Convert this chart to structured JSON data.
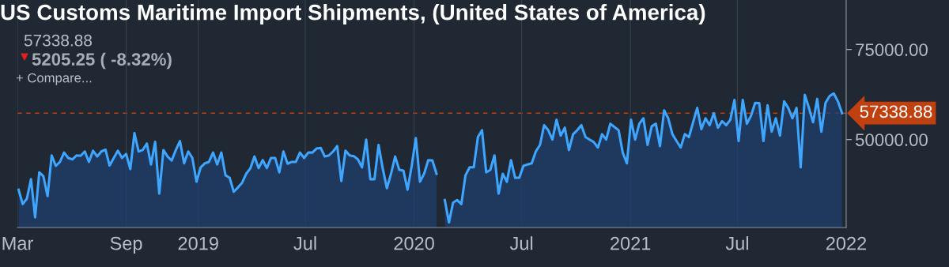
{
  "chart_data": {
    "type": "area",
    "title": "US Customs Maritime Import Shipments, (United States of America)",
    "annotations": [
      "57338.88",
      "5205.25 ( -8.32%)",
      "+ Compare..."
    ],
    "x": [
      "2018-03-03",
      "2018-03-10",
      "2018-03-17",
      "2018-03-24",
      "2018-03-31",
      "2018-04-07",
      "2018-04-14",
      "2018-04-21",
      "2018-04-28",
      "2018-05-05",
      "2018-05-12",
      "2018-05-19",
      "2018-05-26",
      "2018-06-02",
      "2018-06-09",
      "2018-06-16",
      "2018-06-23",
      "2018-06-30",
      "2018-07-07",
      "2018-07-14",
      "2018-07-21",
      "2018-07-28",
      "2018-08-04",
      "2018-08-11",
      "2018-08-18",
      "2018-08-25",
      "2018-09-01",
      "2018-09-08",
      "2018-09-15",
      "2018-09-22",
      "2018-09-29",
      "2018-10-06",
      "2018-10-13",
      "2018-10-20",
      "2018-10-27",
      "2018-11-03",
      "2018-11-10",
      "2018-11-17",
      "2018-11-24",
      "2018-12-01",
      "2018-12-08",
      "2018-12-15",
      "2018-12-22",
      "2018-12-29",
      "2019-01-05",
      "2019-01-12",
      "2019-01-19",
      "2019-01-26",
      "2019-02-02",
      "2019-02-09",
      "2019-02-16",
      "2019-02-23",
      "2019-03-02",
      "2019-03-09",
      "2019-03-16",
      "2019-03-23",
      "2019-03-30",
      "2019-04-06",
      "2019-04-13",
      "2019-04-20",
      "2019-04-27",
      "2019-05-04",
      "2019-05-11",
      "2019-05-18",
      "2019-05-25",
      "2019-06-01",
      "2019-06-08",
      "2019-06-15",
      "2019-06-22",
      "2019-06-29",
      "2019-07-06",
      "2019-07-13",
      "2019-07-20",
      "2019-07-27",
      "2019-08-03",
      "2019-08-10",
      "2019-08-17",
      "2019-08-24",
      "2019-08-31",
      "2019-09-07",
      "2019-09-14",
      "2019-09-21",
      "2019-09-28",
      "2019-10-05",
      "2019-10-12",
      "2019-10-19",
      "2019-10-26",
      "2019-11-02",
      "2019-11-09",
      "2019-11-16",
      "2019-11-23",
      "2019-11-30",
      "2019-12-07",
      "2019-12-14",
      "2019-12-21",
      "2019-12-28",
      "2020-01-04",
      "2020-01-11",
      "2020-01-18",
      "2020-01-25",
      "2020-02-01",
      "2020-02-08",
      "2020-02-15",
      "2020-02-22",
      "2020-02-29",
      "2020-03-07",
      "2020-03-14",
      "2020-03-21",
      "2020-03-28",
      "2020-04-04",
      "2020-04-11",
      "2020-04-18",
      "2020-04-25",
      "2020-05-02",
      "2020-05-09",
      "2020-05-16",
      "2020-05-23",
      "2020-05-30",
      "2020-06-06",
      "2020-06-13",
      "2020-06-20",
      "2020-06-27",
      "2020-07-04",
      "2020-07-11",
      "2020-07-18",
      "2020-07-25",
      "2020-08-01",
      "2020-08-08",
      "2020-08-15",
      "2020-08-22",
      "2020-08-29",
      "2020-09-05",
      "2020-09-12",
      "2020-09-19",
      "2020-09-26",
      "2020-10-03",
      "2020-10-10",
      "2020-10-17",
      "2020-10-24",
      "2020-10-31",
      "2020-11-07",
      "2020-11-14",
      "2020-11-21",
      "2020-11-28",
      "2020-12-05",
      "2020-12-12",
      "2020-12-19",
      "2020-12-26",
      "2021-01-02",
      "2021-01-09",
      "2021-01-16",
      "2021-01-23",
      "2021-01-30",
      "2021-02-06",
      "2021-02-13",
      "2021-02-20",
      "2021-02-27",
      "2021-03-06",
      "2021-03-13",
      "2021-03-20",
      "2021-03-27",
      "2021-04-03",
      "2021-04-10",
      "2021-04-17",
      "2021-04-24",
      "2021-05-01",
      "2021-05-08",
      "2021-05-15",
      "2021-05-22",
      "2021-05-29",
      "2021-06-05",
      "2021-06-12",
      "2021-06-19",
      "2021-06-26",
      "2021-07-03",
      "2021-07-10",
      "2021-07-17",
      "2021-07-24",
      "2021-07-31",
      "2021-08-07",
      "2021-08-14",
      "2021-08-21",
      "2021-08-28",
      "2021-09-04",
      "2021-09-11",
      "2021-09-18",
      "2021-09-25",
      "2021-10-02",
      "2021-10-09",
      "2021-10-16",
      "2021-10-23",
      "2021-10-30",
      "2021-11-06",
      "2021-11-13",
      "2021-11-20",
      "2021-11-27",
      "2021-12-04",
      "2021-12-11",
      "2021-12-18",
      "2021-12-25"
    ],
    "series": [
      {
        "color": "#3ea6ff",
        "values": [
          36100,
          32100,
          33600,
          39000,
          28400,
          40900,
          39800,
          34300,
          45600,
          42700,
          43800,
          46400,
          44900,
          44500,
          45600,
          45500,
          46700,
          43800,
          46900,
          45300,
          46700,
          47200,
          42800,
          44900,
          46900,
          44900,
          46000,
          41800,
          51800,
          46700,
          47100,
          48900,
          43100,
          49400,
          35000,
          47100,
          45300,
          44200,
          47100,
          49600,
          43400,
          46700,
          44900,
          38300,
          42300,
          43400,
          43800,
          46400,
          43100,
          46400,
          40100,
          39400,
          35500,
          36700,
          38000,
          40500,
          42000,
          45300,
          42100,
          44300,
          42100,
          44900,
          44900,
          40900,
          46700,
          43300,
          43800,
          43800,
          46400,
          44900,
          46400,
          46400,
          47500,
          47700,
          45300,
          45600,
          46700,
          48200,
          38500,
          46900,
          45600,
          45400,
          44500,
          42300,
          50000,
          39000,
          39000,
          48500,
          42000,
          36500,
          40500,
          45300,
          41600,
          41400,
          36100,
          42700,
          50400,
          38300,
          40500,
          44300,
          44200,
          40500,
          null,
          33200,
          27000,
          32500,
          33200,
          32100,
          40100,
          42300,
          42300,
          50700,
          52600,
          40900,
          41600,
          45600,
          35000,
          40500,
          38300,
          44300,
          39400,
          39400,
          42700,
          43100,
          43400,
          46700,
          48500,
          54000,
          52600,
          50000,
          55500,
          51100,
          53300,
          47100,
          51500,
          52600,
          54000,
          50700,
          50000,
          49300,
          47800,
          51500,
          50000,
          54400,
          53500,
          52600,
          46400,
          43400,
          55500,
          50000,
          54400,
          55900,
          48500,
          53700,
          54400,
          48200,
          58100,
          55900,
          51500,
          49600,
          47800,
          51500,
          50700,
          54800,
          58800,
          52900,
          55900,
          54000,
          57300,
          53300,
          55100,
          54000,
          55500,
          61000,
          49600,
          61000,
          54400,
          56600,
          60200,
          60100,
          49600,
          59500,
          52200,
          55900,
          51100,
          60600,
          58800,
          55900,
          58800,
          42300,
          62400,
          58800,
          54800,
          61300,
          52200,
          60200,
          62100,
          62800,
          60600,
          57300
        ]
      }
    ],
    "xlim": [
      "2018-03-01",
      "2022-01-01"
    ],
    "xticks": [
      {
        "value": "2018-03-01",
        "label": "Mar"
      },
      {
        "value": "2018-09-01",
        "label": "Sep"
      },
      {
        "value": "2019-01-01",
        "label": "2019"
      },
      {
        "value": "2019-07-01",
        "label": "Jul"
      },
      {
        "value": "2020-01-01",
        "label": "2020"
      },
      {
        "value": "2020-07-01",
        "label": "Jul"
      },
      {
        "value": "2021-01-01",
        "label": "2021"
      },
      {
        "value": "2021-07-01",
        "label": "Jul"
      },
      {
        "value": "2022-01-01",
        "label": "2022"
      }
    ],
    "ylim": [
      25590,
      88750
    ],
    "yticks": [
      {
        "value": 50000,
        "label": "50000.00"
      },
      {
        "value": 75000,
        "label": "75000.00"
      }
    ],
    "grid": "x",
    "ref_lines": [
      {
        "axis": "y",
        "value": 57338.88,
        "label": "57338.88",
        "color": "#c0400f",
        "line_style": "dashed"
      }
    ]
  }
}
